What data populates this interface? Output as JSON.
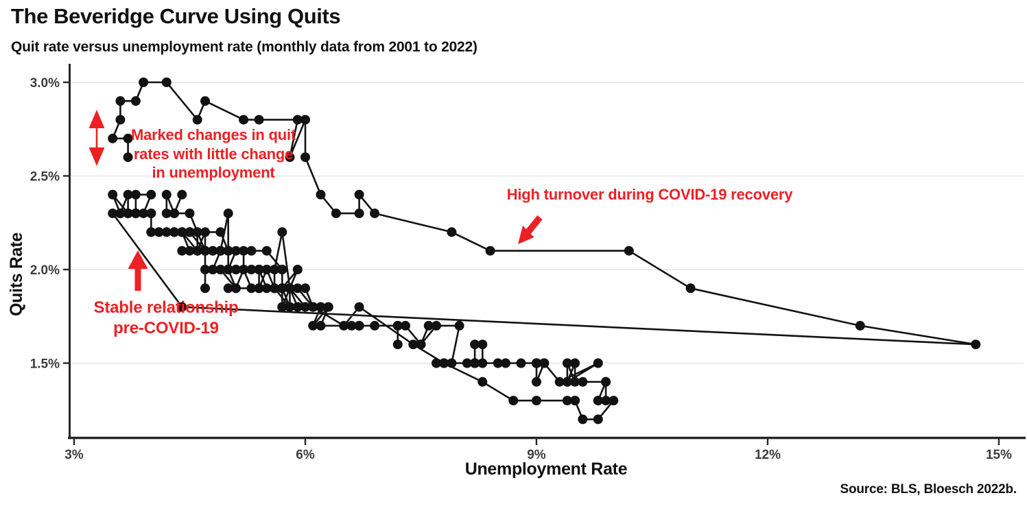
{
  "header": {
    "title": "The Beveridge Curve Using Quits",
    "subtitle": "Quit rate versus unemployment rate (monthly data from 2001 to 2022)"
  },
  "source_note": "Source: BLS, Bloesch 2022b.",
  "colors": {
    "accent_red": "#ED2024",
    "series_black": "#121212",
    "grid_gray": "#EBEBEB",
    "axis_dark": "#262626",
    "tick_text": "#3C3C3C"
  },
  "annotations": {
    "marked": {
      "text": "Marked changes in quit\nrates with little change\nin unemployment"
    },
    "stable": {
      "text": "Stable relationship\npre-COVID-19"
    },
    "high": {
      "text": "High turnover during COVID-19 recovery"
    }
  },
  "chart_data": {
    "type": "scatter",
    "subtype": "connected-scatter-line",
    "title": "The Beveridge Curve Using Quits",
    "xlabel": "Unemployment Rate",
    "ylabel": "Quits Rate",
    "x_ticks": [
      3,
      6,
      9,
      12,
      15
    ],
    "x_tick_labels": [
      "3%",
      "6%",
      "9%",
      "12%",
      "15%"
    ],
    "y_ticks": [
      1.5,
      2.0,
      2.5,
      3.0
    ],
    "y_tick_labels": [
      "1.5%",
      "2.0%",
      "2.5%",
      "3.0%"
    ],
    "x_range": [
      3,
      15.35
    ],
    "y_range": [
      1.08,
      3.1
    ],
    "grid": "horizontal-only",
    "legend": "none",
    "series_name": "Monthly data 2001-2022, points as [unemployment_rate_pct, quits_rate_pct] in chronological order",
    "points": [
      [
        4.2,
        2.3
      ],
      [
        4.2,
        2.4
      ],
      [
        4.3,
        2.3
      ],
      [
        4.4,
        2.4
      ],
      [
        4.3,
        2.3
      ],
      [
        4.5,
        2.3
      ],
      [
        4.6,
        2.2
      ],
      [
        4.9,
        2.2
      ],
      [
        5.0,
        2.1
      ],
      [
        5.3,
        2.1
      ],
      [
        5.5,
        2.1
      ],
      [
        5.7,
        2.0
      ],
      [
        5.7,
        2.0
      ],
      [
        5.7,
        1.9
      ],
      [
        5.7,
        1.9
      ],
      [
        5.9,
        2.0
      ],
      [
        5.8,
        1.9
      ],
      [
        5.8,
        1.9
      ],
      [
        5.8,
        1.8
      ],
      [
        5.7,
        1.9
      ],
      [
        5.7,
        1.8
      ],
      [
        5.7,
        1.8
      ],
      [
        5.9,
        1.8
      ],
      [
        6.0,
        1.8
      ],
      [
        5.8,
        1.9
      ],
      [
        5.9,
        1.8
      ],
      [
        5.9,
        1.8
      ],
      [
        6.0,
        1.8
      ],
      [
        6.1,
        1.8
      ],
      [
        6.3,
        1.8
      ],
      [
        6.2,
        1.8
      ],
      [
        6.1,
        1.8
      ],
      [
        6.1,
        1.8
      ],
      [
        6.0,
        1.9
      ],
      [
        5.8,
        1.9
      ],
      [
        5.7,
        1.8
      ],
      [
        5.7,
        1.9
      ],
      [
        5.6,
        1.9
      ],
      [
        5.8,
        1.9
      ],
      [
        5.7,
        2.2
      ],
      [
        5.6,
        2.0
      ],
      [
        5.6,
        1.9
      ],
      [
        5.5,
        2.0
      ],
      [
        5.4,
        1.9
      ],
      [
        5.4,
        2.0
      ],
      [
        5.5,
        2.0
      ],
      [
        5.4,
        2.0
      ],
      [
        5.4,
        2.0
      ],
      [
        5.3,
        2.0
      ],
      [
        5.4,
        2.0
      ],
      [
        5.2,
        2.0
      ],
      [
        5.2,
        2.1
      ],
      [
        5.1,
        2.1
      ],
      [
        5.0,
        2.0
      ],
      [
        5.0,
        2.1
      ],
      [
        4.9,
        2.1
      ],
      [
        5.0,
        2.3
      ],
      [
        5.0,
        2.1
      ],
      [
        5.0,
        2.1
      ],
      [
        4.9,
        2.1
      ],
      [
        4.7,
        2.1
      ],
      [
        4.8,
        2.1
      ],
      [
        4.7,
        2.1
      ],
      [
        4.7,
        2.1
      ],
      [
        4.6,
        2.1
      ],
      [
        4.6,
        2.2
      ],
      [
        4.7,
        2.1
      ],
      [
        4.7,
        2.1
      ],
      [
        4.5,
        2.2
      ],
      [
        4.4,
        2.2
      ],
      [
        4.5,
        2.2
      ],
      [
        4.4,
        2.2
      ],
      [
        4.6,
        2.2
      ],
      [
        4.5,
        2.2
      ],
      [
        4.4,
        2.2
      ],
      [
        4.5,
        2.2
      ],
      [
        4.4,
        2.2
      ],
      [
        4.6,
        2.1
      ],
      [
        4.7,
        2.1
      ],
      [
        4.6,
        2.1
      ],
      [
        4.7,
        2.1
      ],
      [
        4.7,
        1.9
      ],
      [
        4.7,
        2.0
      ],
      [
        5.0,
        2.0
      ],
      [
        5.0,
        2.0
      ],
      [
        4.9,
        2.0
      ],
      [
        5.1,
        1.9
      ],
      [
        5.0,
        1.9
      ],
      [
        5.4,
        1.9
      ],
      [
        5.6,
        1.9
      ],
      [
        5.8,
        1.8
      ],
      [
        6.1,
        1.8
      ],
      [
        6.1,
        1.8
      ],
      [
        6.5,
        1.7
      ],
      [
        6.7,
        1.8
      ],
      [
        7.4,
        1.6
      ],
      [
        7.8,
        1.5
      ],
      [
        8.3,
        1.4
      ],
      [
        8.7,
        1.3
      ],
      [
        9.0,
        1.3
      ],
      [
        9.4,
        1.3
      ],
      [
        9.5,
        1.3
      ],
      [
        9.5,
        1.3
      ],
      [
        9.6,
        1.2
      ],
      [
        9.8,
        1.2
      ],
      [
        10.0,
        1.3
      ],
      [
        9.9,
        1.3
      ],
      [
        9.9,
        1.4
      ],
      [
        9.8,
        1.3
      ],
      [
        9.8,
        1.3
      ],
      [
        9.9,
        1.4
      ],
      [
        9.9,
        1.4
      ],
      [
        9.6,
        1.4
      ],
      [
        9.4,
        1.4
      ],
      [
        9.5,
        1.5
      ],
      [
        9.5,
        1.4
      ],
      [
        9.4,
        1.5
      ],
      [
        9.4,
        1.4
      ],
      [
        9.8,
        1.5
      ],
      [
        9.3,
        1.4
      ],
      [
        9.1,
        1.5
      ],
      [
        9.0,
        1.4
      ],
      [
        9.0,
        1.5
      ],
      [
        9.1,
        1.5
      ],
      [
        9.0,
        1.5
      ],
      [
        9.1,
        1.5
      ],
      [
        9.0,
        1.5
      ],
      [
        9.0,
        1.5
      ],
      [
        9.0,
        1.5
      ],
      [
        8.8,
        1.5
      ],
      [
        8.6,
        1.5
      ],
      [
        8.5,
        1.5
      ],
      [
        8.3,
        1.5
      ],
      [
        8.3,
        1.6
      ],
      [
        8.2,
        1.6
      ],
      [
        8.2,
        1.5
      ],
      [
        8.2,
        1.5
      ],
      [
        8.2,
        1.5
      ],
      [
        8.2,
        1.5
      ],
      [
        8.1,
        1.5
      ],
      [
        7.8,
        1.5
      ],
      [
        7.8,
        1.5
      ],
      [
        7.7,
        1.5
      ],
      [
        7.9,
        1.5
      ],
      [
        8.0,
        1.7
      ],
      [
        7.7,
        1.7
      ],
      [
        7.5,
        1.6
      ],
      [
        7.6,
        1.7
      ],
      [
        7.5,
        1.6
      ],
      [
        7.5,
        1.6
      ],
      [
        7.3,
        1.7
      ],
      [
        7.2,
        1.7
      ],
      [
        7.2,
        1.6
      ],
      [
        7.2,
        1.7
      ],
      [
        6.9,
        1.7
      ],
      [
        6.7,
        1.7
      ],
      [
        6.6,
        1.7
      ],
      [
        6.7,
        1.7
      ],
      [
        6.7,
        1.7
      ],
      [
        6.2,
        1.7
      ],
      [
        6.3,
        1.8
      ],
      [
        6.1,
        1.7
      ],
      [
        6.2,
        1.8
      ],
      [
        6.1,
        1.8
      ],
      [
        5.9,
        1.9
      ],
      [
        5.7,
        1.9
      ],
      [
        5.8,
        1.9
      ],
      [
        5.6,
        1.9
      ],
      [
        5.7,
        1.9
      ],
      [
        5.5,
        1.9
      ],
      [
        5.4,
        2.0
      ],
      [
        5.4,
        1.9
      ],
      [
        5.6,
        1.9
      ],
      [
        5.3,
        1.9
      ],
      [
        5.2,
        2.0
      ],
      [
        5.1,
        1.9
      ],
      [
        5.0,
        2.0
      ],
      [
        5.0,
        2.0
      ],
      [
        5.1,
        2.0
      ],
      [
        5.0,
        2.0
      ],
      [
        4.8,
        2.0
      ],
      [
        4.9,
        2.0
      ],
      [
        5.0,
        2.0
      ],
      [
        5.1,
        2.0
      ],
      [
        4.8,
        2.0
      ],
      [
        4.9,
        2.1
      ],
      [
        4.8,
        2.1
      ],
      [
        4.9,
        2.1
      ],
      [
        5.0,
        2.1
      ],
      [
        4.9,
        2.1
      ],
      [
        4.7,
        2.1
      ],
      [
        4.7,
        2.1
      ],
      [
        4.7,
        2.2
      ],
      [
        4.6,
        2.1
      ],
      [
        4.4,
        2.1
      ],
      [
        4.5,
        2.1
      ],
      [
        4.4,
        2.2
      ],
      [
        4.3,
        2.2
      ],
      [
        4.3,
        2.2
      ],
      [
        4.4,
        2.2
      ],
      [
        4.3,
        2.2
      ],
      [
        4.2,
        2.2
      ],
      [
        4.2,
        2.2
      ],
      [
        4.1,
        2.2
      ],
      [
        4.0,
        2.2
      ],
      [
        4.1,
        2.2
      ],
      [
        4.0,
        2.2
      ],
      [
        4.0,
        2.3
      ],
      [
        3.8,
        2.3
      ],
      [
        4.0,
        2.3
      ],
      [
        3.8,
        2.3
      ],
      [
        3.8,
        2.3
      ],
      [
        3.7,
        2.3
      ],
      [
        3.8,
        2.3
      ],
      [
        3.8,
        2.3
      ],
      [
        3.9,
        2.3
      ],
      [
        4.0,
        2.4
      ],
      [
        3.8,
        2.4
      ],
      [
        3.8,
        2.3
      ],
      [
        3.7,
        2.3
      ],
      [
        3.6,
        2.3
      ],
      [
        3.6,
        2.3
      ],
      [
        3.7,
        2.4
      ],
      [
        3.7,
        2.3
      ],
      [
        3.5,
        2.4
      ],
      [
        3.6,
        2.3
      ],
      [
        3.6,
        2.3
      ],
      [
        3.6,
        2.3
      ],
      [
        3.6,
        2.3
      ],
      [
        3.5,
        2.3
      ],
      [
        4.4,
        1.8
      ],
      [
        14.7,
        1.6
      ],
      [
        13.2,
        1.7
      ],
      [
        11.0,
        1.9
      ],
      [
        10.2,
        2.1
      ],
      [
        8.4,
        2.1
      ],
      [
        7.9,
        2.2
      ],
      [
        6.9,
        2.3
      ],
      [
        6.7,
        2.4
      ],
      [
        6.7,
        2.3
      ],
      [
        6.4,
        2.3
      ],
      [
        6.2,
        2.4
      ],
      [
        6.0,
        2.6
      ],
      [
        6.0,
        2.8
      ],
      [
        5.8,
        2.6
      ],
      [
        5.9,
        2.8
      ],
      [
        5.4,
        2.8
      ],
      [
        5.2,
        2.8
      ],
      [
        4.7,
        2.9
      ],
      [
        4.6,
        2.8
      ],
      [
        4.2,
        3.0
      ],
      [
        3.9,
        3.0
      ],
      [
        3.8,
        2.9
      ],
      [
        3.6,
        2.9
      ],
      [
        3.6,
        2.8
      ],
      [
        3.5,
        2.7
      ],
      [
        3.7,
        2.7
      ],
      [
        3.7,
        2.6
      ]
    ]
  }
}
